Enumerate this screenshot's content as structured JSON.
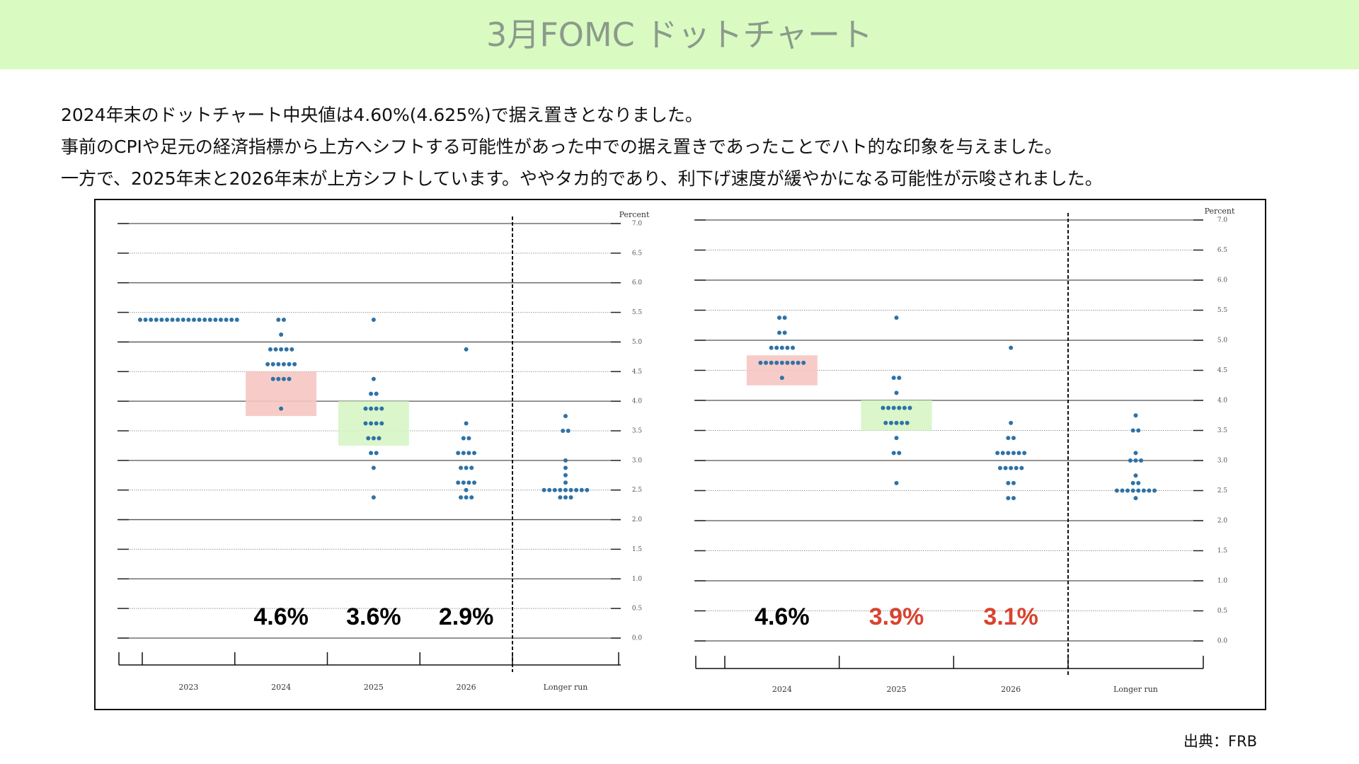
{
  "header": {
    "title": "3月FOMC ドットチャート"
  },
  "body": {
    "lines": [
      "2024年末のドットチャート中央値は4.60%(4.625%)で据え置きとなりました。",
      "事前のCPIや足元の経済指標から上方へシフトする可能性があった中での据え置きであったことでハト的な印象を与えました。",
      "一方で、2025年末と2026年末が上方シフトしています。ややタカ的であり、利下げ速度が緩やかになる可能性が示唆されました。"
    ]
  },
  "chart_data": [
    {
      "type": "dot",
      "y_label": "Percent",
      "dot_color": "#2e72a6",
      "grid": true,
      "categories": [
        "2023",
        "2024",
        "2025",
        "2026",
        "Longer run"
      ],
      "dots": [
        [
          5.375,
          5.375,
          5.375,
          5.375,
          5.375,
          5.375,
          5.375,
          5.375,
          5.375,
          5.375,
          5.375,
          5.375,
          5.375,
          5.375,
          5.375,
          5.375,
          5.375,
          5.375,
          5.375
        ],
        [
          5.375,
          5.375,
          5.125,
          4.875,
          4.875,
          4.875,
          4.875,
          4.875,
          4.625,
          4.625,
          4.625,
          4.625,
          4.625,
          4.625,
          4.375,
          4.375,
          4.375,
          4.375,
          3.875
        ],
        [
          5.375,
          4.375,
          4.125,
          4.125,
          3.875,
          3.875,
          3.875,
          3.875,
          3.625,
          3.625,
          3.625,
          3.625,
          3.375,
          3.375,
          3.375,
          3.125,
          3.125,
          2.875,
          2.375
        ],
        [
          4.875,
          3.625,
          3.375,
          3.375,
          3.125,
          3.125,
          3.125,
          3.125,
          2.875,
          2.875,
          2.875,
          2.625,
          2.625,
          2.625,
          2.625,
          2.5,
          2.375,
          2.375,
          2.375
        ],
        [
          3.75,
          3.5,
          3.5,
          3.0,
          2.875,
          2.75,
          2.625,
          2.5,
          2.5,
          2.5,
          2.5,
          2.5,
          2.5,
          2.5,
          2.5,
          2.5,
          2.375,
          2.375,
          2.375
        ]
      ],
      "ylim": [
        0,
        7
      ],
      "yticks": [
        {
          "value": 0,
          "label": "0.0"
        },
        {
          "value": 0.5,
          "label": "0.5"
        },
        {
          "value": 1,
          "label": "1.0"
        },
        {
          "value": 1.5,
          "label": "1.5"
        },
        {
          "value": 2,
          "label": "2.0"
        },
        {
          "value": 2.5,
          "label": "2.5"
        },
        {
          "value": 3,
          "label": "3.0"
        },
        {
          "value": 3.5,
          "label": "3.5"
        },
        {
          "value": 4,
          "label": "4.0"
        },
        {
          "value": 4.5,
          "label": "4.5"
        },
        {
          "value": 5,
          "label": "5.0"
        },
        {
          "value": 5.5,
          "label": "5.5"
        },
        {
          "value": 6,
          "label": "6.0"
        },
        {
          "value": 6.5,
          "label": "6.5"
        },
        {
          "value": 7,
          "label": "7.0"
        }
      ],
      "highlights": [
        {
          "category": "2024",
          "range": [
            3.75,
            4.5
          ],
          "color": "#f6c6c2"
        },
        {
          "category": "2025",
          "range": [
            3.25,
            4.0
          ],
          "color": "#d6f5c4"
        }
      ],
      "annotations": [
        {
          "category": "2024",
          "text": "4.6%",
          "color": "#000000"
        },
        {
          "category": "2025",
          "text": "3.6%",
          "color": "#000000"
        },
        {
          "category": "2026",
          "text": "2.9%",
          "color": "#000000"
        }
      ]
    },
    {
      "type": "dot",
      "y_label": "Percent",
      "dot_color": "#2e72a6",
      "grid": true,
      "categories": [
        "2024",
        "2025",
        "2026",
        "Longer run"
      ],
      "dots": [
        [
          5.375,
          5.375,
          5.125,
          5.125,
          4.875,
          4.875,
          4.875,
          4.875,
          4.875,
          4.625,
          4.625,
          4.625,
          4.625,
          4.625,
          4.625,
          4.625,
          4.625,
          4.625,
          4.375
        ],
        [
          5.375,
          4.375,
          4.375,
          4.125,
          3.875,
          3.875,
          3.875,
          3.875,
          3.875,
          3.875,
          3.625,
          3.625,
          3.625,
          3.625,
          3.625,
          3.375,
          3.125,
          3.125,
          2.625
        ],
        [
          4.875,
          3.625,
          3.375,
          3.375,
          3.125,
          3.125,
          3.125,
          3.125,
          3.125,
          3.125,
          2.875,
          2.875,
          2.875,
          2.875,
          2.875,
          2.625,
          2.625,
          2.375,
          2.375
        ],
        [
          3.75,
          3.5,
          3.5,
          3.125,
          3.0,
          3.0,
          3.0,
          2.75,
          2.625,
          2.625,
          2.5,
          2.5,
          2.5,
          2.5,
          2.5,
          2.5,
          2.5,
          2.5,
          2.375
        ]
      ],
      "ylim": [
        0,
        7
      ],
      "yticks": [
        {
          "value": 0,
          "label": "0.0"
        },
        {
          "value": 0.5,
          "label": "0.5"
        },
        {
          "value": 1,
          "label": "1.0"
        },
        {
          "value": 1.5,
          "label": "1.5"
        },
        {
          "value": 2,
          "label": "2.0"
        },
        {
          "value": 2.5,
          "label": "2.5"
        },
        {
          "value": 3,
          "label": "3.0"
        },
        {
          "value": 3.5,
          "label": "3.5"
        },
        {
          "value": 4,
          "label": "4.0"
        },
        {
          "value": 4.5,
          "label": "4.5"
        },
        {
          "value": 5,
          "label": "5.0"
        },
        {
          "value": 5.5,
          "label": "5.5"
        },
        {
          "value": 6,
          "label": "6.0"
        },
        {
          "value": 6.5,
          "label": "6.5"
        },
        {
          "value": 7,
          "label": "7.0"
        }
      ],
      "highlights": [
        {
          "category": "2024",
          "range": [
            4.25,
            4.75
          ],
          "color": "#f6c6c2"
        },
        {
          "category": "2025",
          "range": [
            3.5,
            4.0
          ],
          "color": "#d6f5c4"
        }
      ],
      "annotations": [
        {
          "category": "2024",
          "text": "4.6%",
          "color": "#000000"
        },
        {
          "category": "2025",
          "text": "3.9%",
          "color": "#d9432f"
        },
        {
          "category": "2026",
          "text": "3.1%",
          "color": "#d9432f"
        }
      ]
    }
  ],
  "source": "出典：FRB"
}
